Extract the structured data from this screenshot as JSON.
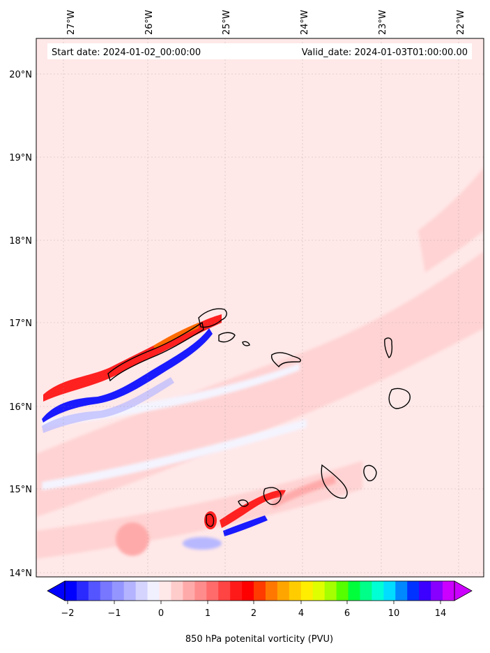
{
  "map": {
    "start_date": "Start date: 2024-01-02_00:00:00",
    "valid_date": "Valid_date: 2024-01-03T01:00:00.00",
    "field": "850 hPa potenital vorticity (PVU)",
    "lon_labels": [
      "27°W",
      "26°W",
      "25°W",
      "24°W",
      "23°W",
      "22°W"
    ],
    "lat_labels": [
      "20°N",
      "19°N",
      "18°N",
      "17°N",
      "16°N",
      "15°N",
      "14°N"
    ],
    "extent": {
      "lon": [
        -27.35,
        -21.6
      ],
      "lat": [
        13.95,
        20.4
      ]
    },
    "gridlines": true,
    "background_value_color": "#ffe8e8"
  },
  "colorbar": {
    "tick_labels": [
      "−2",
      "−1",
      "0",
      "1",
      "2",
      "4",
      "6",
      "10",
      "14"
    ],
    "colors": [
      "#0000ff",
      "#2a2aff",
      "#5555ff",
      "#7777ff",
      "#9595ff",
      "#b3b3ff",
      "#d4d4ff",
      "#f0f0ff",
      "#ffe8e8",
      "#ffcccc",
      "#ffaaaa",
      "#ff8c8c",
      "#ff6b6b",
      "#ff4444",
      "#ff1a1a",
      "#ff0000",
      "#ff3b00",
      "#ff7700",
      "#ffa500",
      "#ffcc00",
      "#ffee00",
      "#dfff00",
      "#a5ff00",
      "#55ff00",
      "#00ff3a",
      "#00ff88",
      "#00ffd5",
      "#00ddff",
      "#0088ff",
      "#0033ff",
      "#3b00ff",
      "#8800ff",
      "#cc00ff"
    ]
  }
}
